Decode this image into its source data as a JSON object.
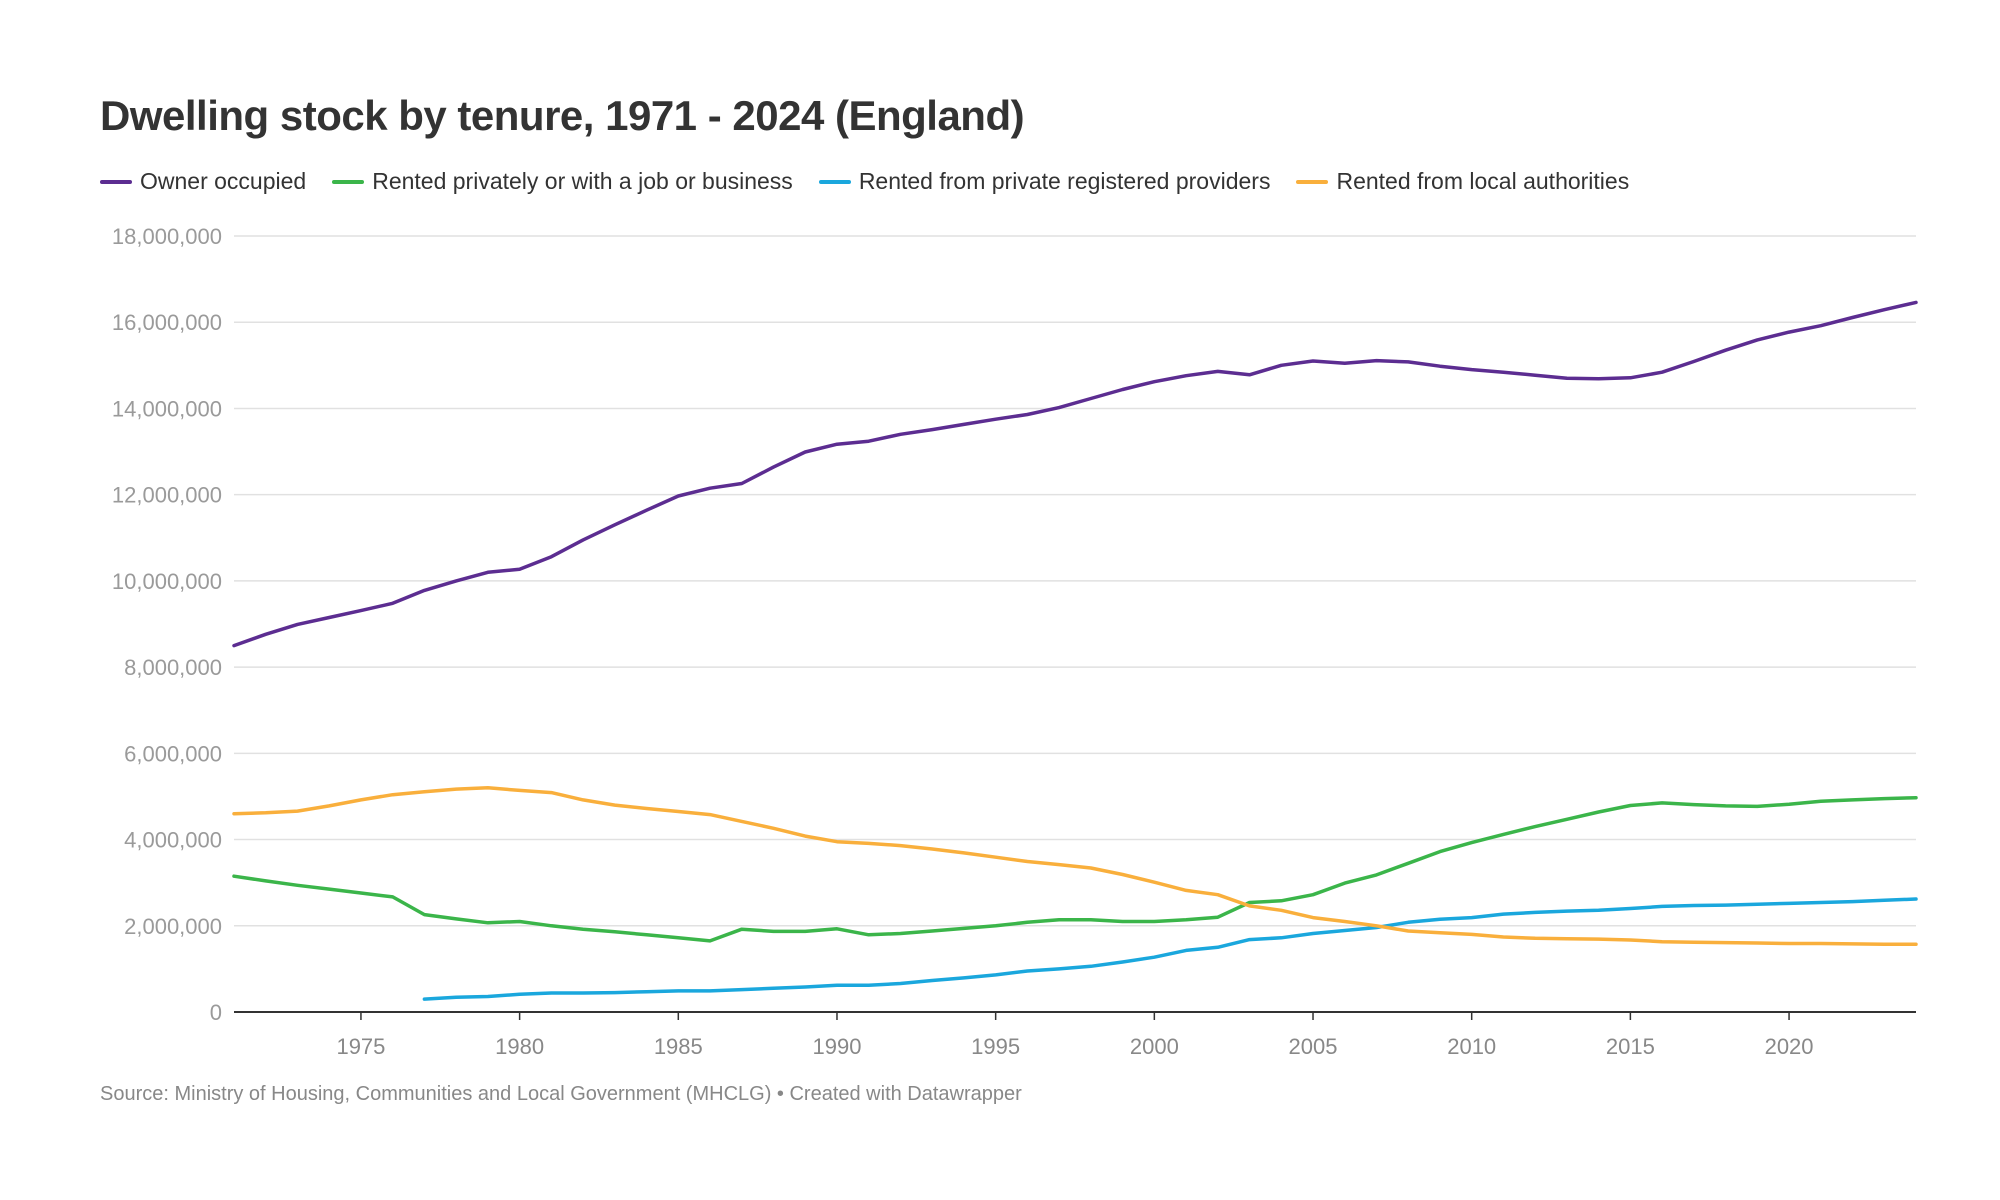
{
  "chart_data": {
    "type": "line",
    "title": "Dwelling stock by tenure, 1971 - 2024 (England)",
    "source": "Source: Ministry of Housing, Communities and Local Government (MHCLG) • Created with Datawrapper",
    "xlabel": "",
    "ylabel": "",
    "xlim": [
      1971,
      2024
    ],
    "ylim": [
      0,
      18000000
    ],
    "x_ticks": [
      1975,
      1980,
      1985,
      1990,
      1995,
      2000,
      2005,
      2010,
      2015,
      2020
    ],
    "y_ticks": [
      0,
      2000000,
      4000000,
      6000000,
      8000000,
      10000000,
      12000000,
      14000000,
      16000000,
      18000000
    ],
    "y_tick_labels": [
      "0",
      "2,000,000",
      "4,000,000",
      "6,000,000",
      "8,000,000",
      "10,000,000",
      "12,000,000",
      "14,000,000",
      "16,000,000",
      "18,000,000"
    ],
    "grid": true,
    "legend_position": "top-left",
    "series": [
      {
        "name": "Owner occupied",
        "color": "#5c2d91",
        "x": [
          1971,
          1972,
          1973,
          1974,
          1975,
          1976,
          1977,
          1978,
          1979,
          1980,
          1981,
          1982,
          1983,
          1984,
          1985,
          1986,
          1987,
          1988,
          1989,
          1990,
          1991,
          1992,
          1993,
          1994,
          1995,
          1996,
          1997,
          1998,
          1999,
          2000,
          2001,
          2002,
          2003,
          2004,
          2005,
          2006,
          2007,
          2008,
          2009,
          2010,
          2011,
          2012,
          2013,
          2014,
          2015,
          2016,
          2017,
          2018,
          2019,
          2020,
          2021,
          2022,
          2023,
          2024
        ],
        "values": [
          8500000,
          8760000,
          8990000,
          9150000,
          9310000,
          9480000,
          9780000,
          10000000,
          10200000,
          10270000,
          10560000,
          10950000,
          11300000,
          11640000,
          11970000,
          12150000,
          12260000,
          12640000,
          12990000,
          13170000,
          13240000,
          13400000,
          13510000,
          13630000,
          13750000,
          13860000,
          14020000,
          14230000,
          14440000,
          14620000,
          14760000,
          14860000,
          14780000,
          15000000,
          15100000,
          15050000,
          15110000,
          15080000,
          14980000,
          14900000,
          14840000,
          14770000,
          14700000,
          14690000,
          14710000,
          14840000,
          15090000,
          15350000,
          15590000,
          15770000,
          15920000,
          16110000,
          16290000,
          16460000
        ]
      },
      {
        "name": "Rented privately or with a job or business",
        "color": "#3bb54a",
        "x": [
          1971,
          1972,
          1973,
          1974,
          1975,
          1976,
          1977,
          1978,
          1979,
          1980,
          1981,
          1982,
          1983,
          1984,
          1985,
          1986,
          1987,
          1988,
          1989,
          1990,
          1991,
          1992,
          1993,
          1994,
          1995,
          1996,
          1997,
          1998,
          1999,
          2000,
          2001,
          2002,
          2003,
          2004,
          2005,
          2006,
          2007,
          2008,
          2009,
          2010,
          2011,
          2012,
          2013,
          2014,
          2015,
          2016,
          2017,
          2018,
          2019,
          2020,
          2021,
          2022,
          2023,
          2024
        ],
        "values": [
          3150000,
          3040000,
          2940000,
          2850000,
          2760000,
          2670000,
          2260000,
          2160000,
          2070000,
          2100000,
          2000000,
          1920000,
          1860000,
          1790000,
          1720000,
          1650000,
          1920000,
          1870000,
          1870000,
          1930000,
          1790000,
          1820000,
          1880000,
          1940000,
          2000000,
          2080000,
          2140000,
          2140000,
          2100000,
          2100000,
          2140000,
          2200000,
          2540000,
          2580000,
          2720000,
          2990000,
          3180000,
          3450000,
          3720000,
          3930000,
          4120000,
          4300000,
          4470000,
          4640000,
          4790000,
          4850000,
          4810000,
          4780000,
          4770000,
          4820000,
          4890000,
          4920000,
          4950000,
          4970000
        ]
      },
      {
        "name": "Rented from private registered providers",
        "color": "#1aa7dd",
        "x": [
          1977,
          1978,
          1979,
          1980,
          1981,
          1982,
          1983,
          1984,
          1985,
          1986,
          1987,
          1988,
          1989,
          1990,
          1991,
          1992,
          1993,
          1994,
          1995,
          1996,
          1997,
          1998,
          1999,
          2000,
          2001,
          2002,
          2003,
          2004,
          2005,
          2006,
          2007,
          2008,
          2009,
          2010,
          2011,
          2012,
          2013,
          2014,
          2015,
          2016,
          2017,
          2018,
          2019,
          2020,
          2021,
          2022,
          2023,
          2024
        ],
        "values": [
          300000,
          340000,
          360000,
          410000,
          440000,
          440000,
          450000,
          470000,
          490000,
          490000,
          520000,
          550000,
          580000,
          620000,
          620000,
          660000,
          730000,
          790000,
          860000,
          950000,
          1000000,
          1060000,
          1160000,
          1270000,
          1430000,
          1500000,
          1680000,
          1720000,
          1820000,
          1890000,
          1960000,
          2080000,
          2150000,
          2190000,
          2270000,
          2310000,
          2340000,
          2360000,
          2400000,
          2450000,
          2470000,
          2480000,
          2500000,
          2520000,
          2540000,
          2560000,
          2590000,
          2620000
        ]
      },
      {
        "name": "Rented from local authorities",
        "color": "#f9af3c",
        "x": [
          1971,
          1972,
          1973,
          1974,
          1975,
          1976,
          1977,
          1978,
          1979,
          1980,
          1981,
          1982,
          1983,
          1984,
          1985,
          1986,
          1987,
          1988,
          1989,
          1990,
          1991,
          1992,
          1993,
          1994,
          1995,
          1996,
          1997,
          1998,
          1999,
          2000,
          2001,
          2002,
          2003,
          2004,
          2005,
          2006,
          2007,
          2008,
          2009,
          2010,
          2011,
          2012,
          2013,
          2014,
          2015,
          2016,
          2017,
          2018,
          2019,
          2020,
          2021,
          2022,
          2023,
          2024
        ],
        "values": [
          4600000,
          4620000,
          4660000,
          4780000,
          4920000,
          5040000,
          5110000,
          5170000,
          5200000,
          5140000,
          5090000,
          4920000,
          4800000,
          4720000,
          4650000,
          4580000,
          4420000,
          4260000,
          4080000,
          3950000,
          3910000,
          3860000,
          3780000,
          3690000,
          3590000,
          3490000,
          3420000,
          3340000,
          3190000,
          3010000,
          2820000,
          2720000,
          2460000,
          2360000,
          2190000,
          2100000,
          2000000,
          1880000,
          1840000,
          1800000,
          1740000,
          1710000,
          1700000,
          1690000,
          1670000,
          1630000,
          1620000,
          1610000,
          1600000,
          1590000,
          1590000,
          1580000,
          1570000,
          1570000
        ]
      }
    ]
  }
}
